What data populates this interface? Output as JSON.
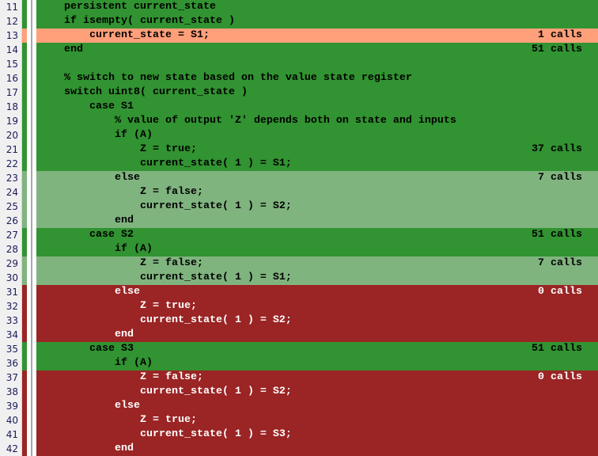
{
  "colors": {
    "full_coverage": "#319331",
    "partial_coverage": "#80b47f",
    "no_coverage": "#9b2424",
    "current_line": "#ffa07a"
  },
  "lines": [
    {
      "num": "11",
      "code": "    persistent current_state",
      "calls": "",
      "status": "g"
    },
    {
      "num": "12",
      "code": "    if isempty( current_state )",
      "calls": "",
      "status": "g"
    },
    {
      "num": "13",
      "code": "        current_state = S1;",
      "calls": "1 calls",
      "status": "s"
    },
    {
      "num": "14",
      "code": "    end",
      "calls": "51 calls",
      "status": "g"
    },
    {
      "num": "15",
      "code": "",
      "calls": "",
      "status": "g"
    },
    {
      "num": "16",
      "code": "    % switch to new state based on the value state register",
      "calls": "",
      "status": "g"
    },
    {
      "num": "17",
      "code": "    switch uint8( current_state )",
      "calls": "",
      "status": "g"
    },
    {
      "num": "18",
      "code": "        case S1",
      "calls": "",
      "status": "g"
    },
    {
      "num": "19",
      "code": "            % value of output 'Z' depends both on state and inputs",
      "calls": "",
      "status": "g"
    },
    {
      "num": "20",
      "code": "            if (A)",
      "calls": "",
      "status": "g"
    },
    {
      "num": "21",
      "code": "                Z = true;",
      "calls": "37 calls",
      "status": "g"
    },
    {
      "num": "22",
      "code": "                current_state( 1 ) = S1;",
      "calls": "",
      "status": "g"
    },
    {
      "num": "23",
      "code": "            else",
      "calls": "7 calls",
      "status": "l"
    },
    {
      "num": "24",
      "code": "                Z = false;",
      "calls": "",
      "status": "l"
    },
    {
      "num": "25",
      "code": "                current_state( 1 ) = S2;",
      "calls": "",
      "status": "l"
    },
    {
      "num": "26",
      "code": "            end",
      "calls": "",
      "status": "l"
    },
    {
      "num": "27",
      "code": "        case S2",
      "calls": "51 calls",
      "status": "g"
    },
    {
      "num": "28",
      "code": "            if (A)",
      "calls": "",
      "status": "g"
    },
    {
      "num": "29",
      "code": "                Z = false;",
      "calls": "7 calls",
      "status": "l"
    },
    {
      "num": "30",
      "code": "                current_state( 1 ) = S1;",
      "calls": "",
      "status": "l"
    },
    {
      "num": "31",
      "code": "            else",
      "calls": "0 calls",
      "status": "r"
    },
    {
      "num": "32",
      "code": "                Z = true;",
      "calls": "",
      "status": "r"
    },
    {
      "num": "33",
      "code": "                current_state( 1 ) = S2;",
      "calls": "",
      "status": "r"
    },
    {
      "num": "34",
      "code": "            end",
      "calls": "",
      "status": "r"
    },
    {
      "num": "35",
      "code": "        case S3",
      "calls": "51 calls",
      "status": "g"
    },
    {
      "num": "36",
      "code": "            if (A)",
      "calls": "",
      "status": "g"
    },
    {
      "num": "37",
      "code": "                Z = false;",
      "calls": "0 calls",
      "status": "r"
    },
    {
      "num": "38",
      "code": "                current_state( 1 ) = S2;",
      "calls": "",
      "status": "r"
    },
    {
      "num": "39",
      "code": "            else",
      "calls": "",
      "status": "r"
    },
    {
      "num": "40",
      "code": "                Z = true;",
      "calls": "",
      "status": "r"
    },
    {
      "num": "41",
      "code": "                current_state( 1 ) = S3;",
      "calls": "",
      "status": "r"
    },
    {
      "num": "42",
      "code": "            end",
      "calls": "",
      "status": "r"
    }
  ]
}
